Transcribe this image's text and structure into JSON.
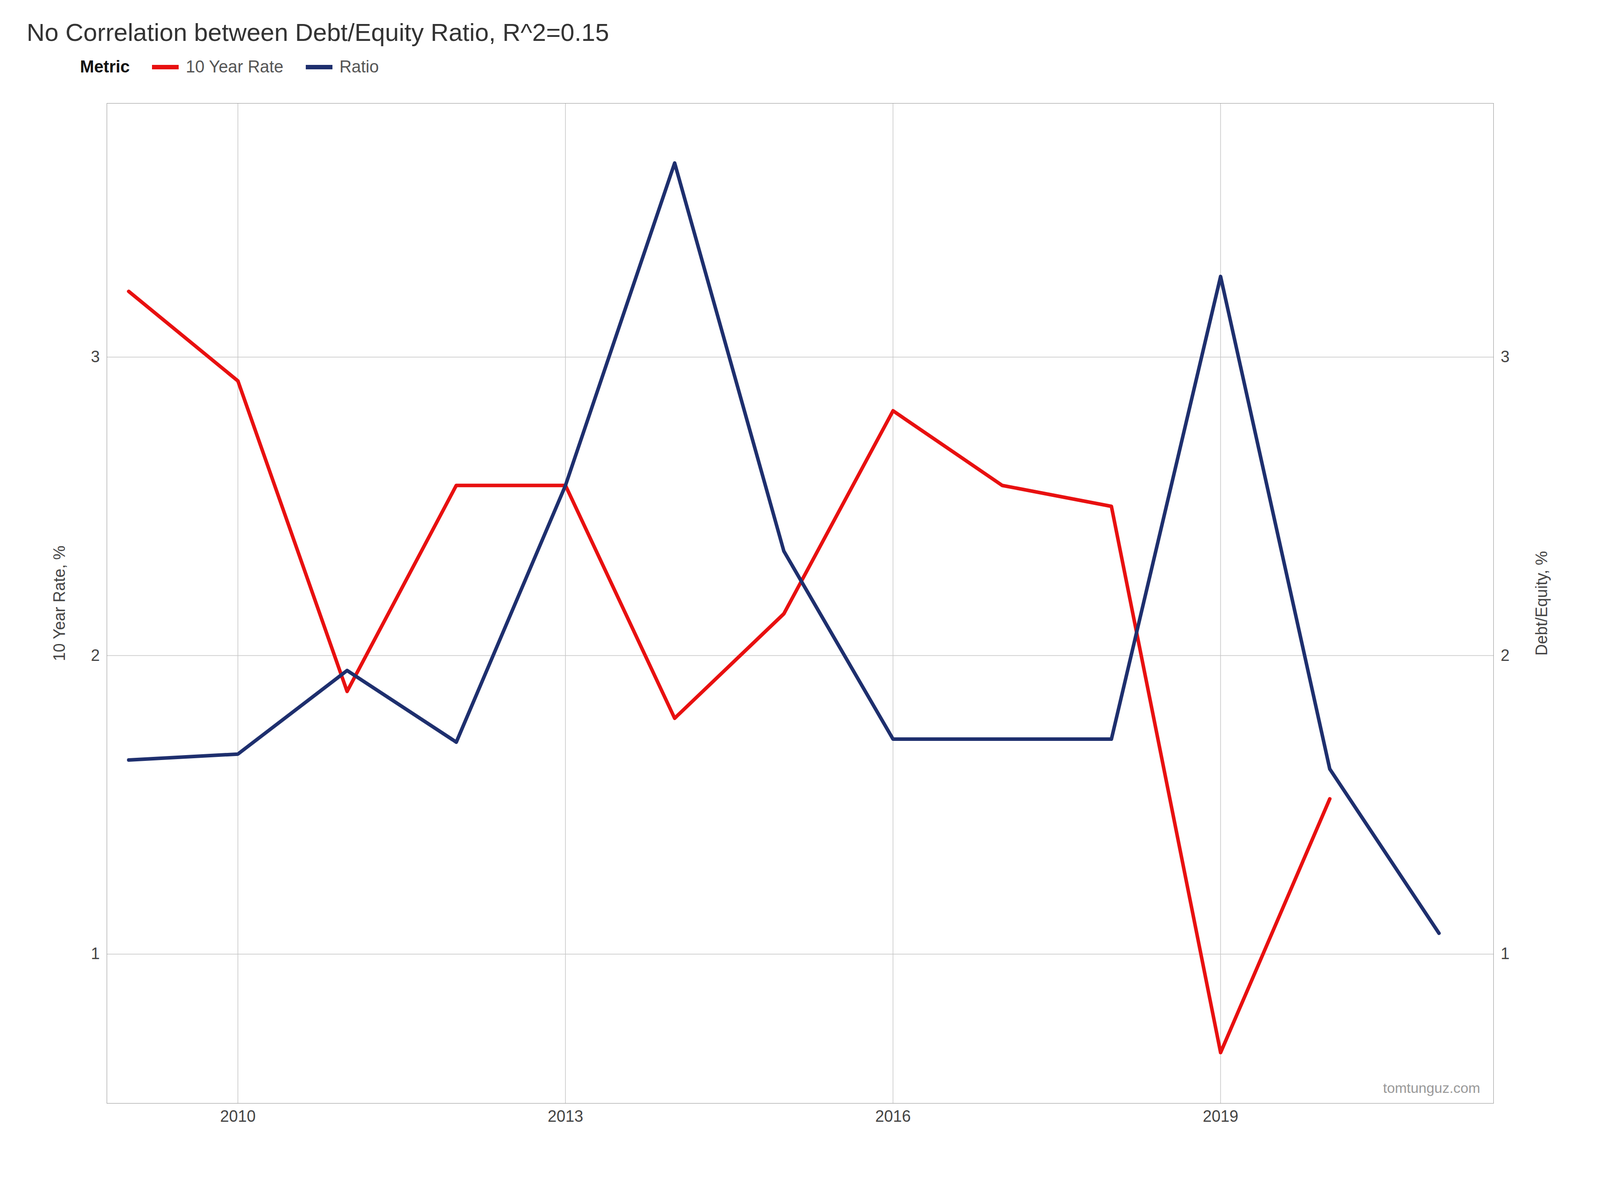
{
  "chart_data": {
    "type": "line",
    "title": "No Correlation between Debt/Equity Ratio, R^2=0.15",
    "x": [
      2009,
      2010,
      2011,
      2012,
      2013,
      2014,
      2015,
      2016,
      2017,
      2018,
      2019,
      2020,
      2021
    ],
    "series": [
      {
        "name": "10 Year Rate",
        "color": "#e81010",
        "values": [
          3.22,
          2.92,
          1.88,
          2.57,
          2.57,
          1.79,
          2.14,
          2.82,
          2.57,
          2.5,
          0.67,
          1.52,
          null
        ]
      },
      {
        "name": "Ratio",
        "color": "#1e2f6e",
        "axis": "y2",
        "values": [
          1.65,
          1.67,
          1.95,
          1.71,
          2.57,
          3.65,
          2.35,
          1.72,
          1.72,
          1.72,
          3.27,
          1.62,
          1.07
        ]
      }
    ],
    "ylabel": "10 Year Rate, %",
    "y2label": "Debt/Equity, %",
    "legend_title": "Metric",
    "legend": "upper left",
    "annotations": [
      "tomtunguz.com"
    ],
    "xlim": [
      2008.8,
      2021.5
    ],
    "xticks": [
      2010,
      2013,
      2016,
      2019
    ],
    "ylim": [
      0.5,
      3.85
    ],
    "yticks": [
      1,
      2,
      3
    ],
    "y2lim": [
      0.5,
      3.85
    ],
    "y2ticks": [
      1,
      2,
      3
    ],
    "grid": true
  }
}
